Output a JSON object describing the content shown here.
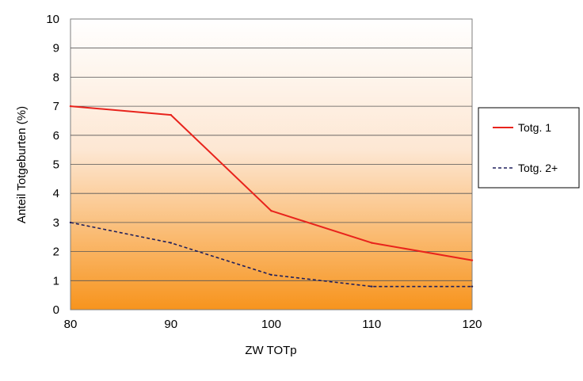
{
  "chart_data": {
    "type": "line",
    "title": "",
    "xlabel": "ZW TOTp",
    "ylabel": "Anteil Totgeburten (%)",
    "x": [
      80,
      90,
      100,
      110,
      120
    ],
    "xlim": [
      80,
      120
    ],
    "ylim": [
      0,
      10
    ],
    "xticks": [
      "80",
      "90",
      "100",
      "110",
      "120"
    ],
    "yticks": [
      "0",
      "1",
      "2",
      "3",
      "4",
      "5",
      "6",
      "7",
      "8",
      "9",
      "10"
    ],
    "grid": true,
    "legend_position": "right",
    "background": "vertical gradient white (top) to orange (bottom)",
    "series": [
      {
        "name": "Totg. 1",
        "values": [
          7.0,
          6.7,
          3.4,
          2.3,
          1.7
        ],
        "color": "#e8231c",
        "style": "solid"
      },
      {
        "name": "Totg. 2+",
        "values": [
          3.0,
          2.3,
          1.2,
          0.8,
          0.8
        ],
        "color": "#1f1f5c",
        "style": "dashed"
      }
    ]
  }
}
